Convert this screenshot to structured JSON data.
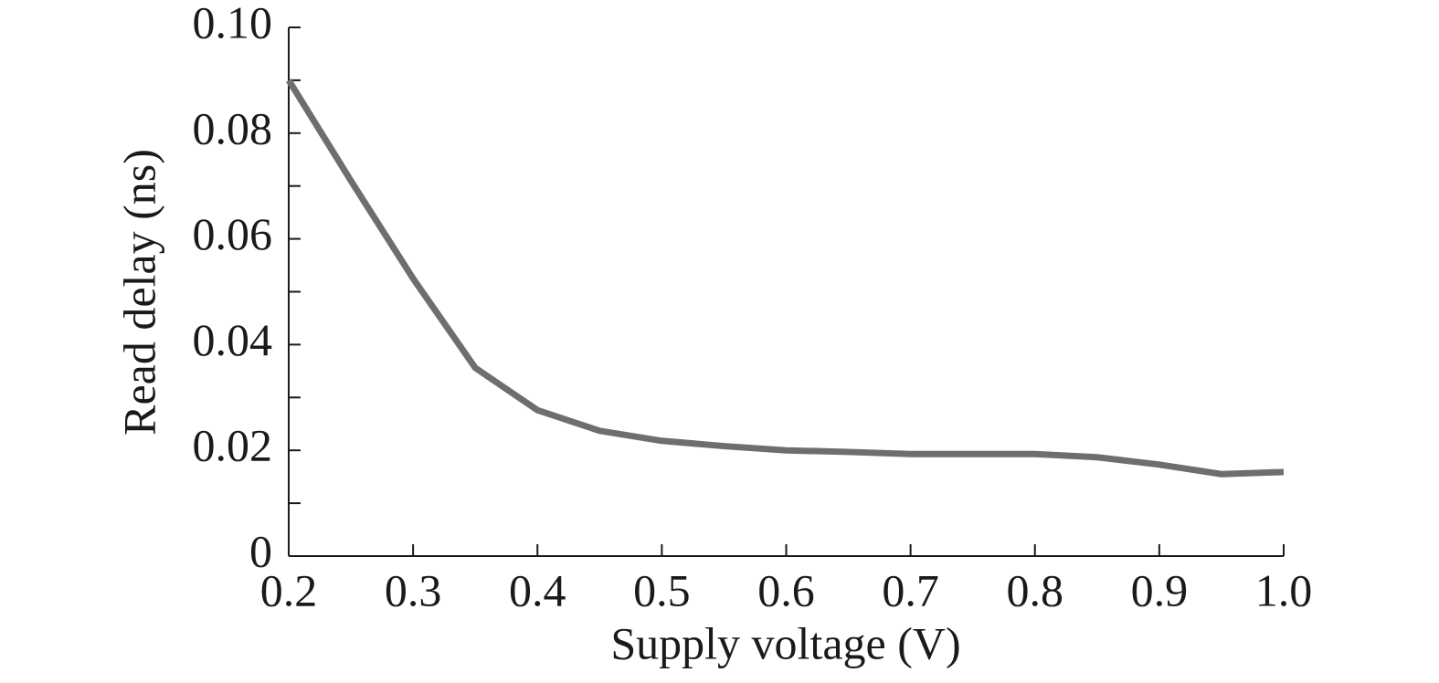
{
  "chart_data": {
    "type": "line",
    "xlabel": "Supply voltage (V)",
    "ylabel": "Read delay (ns)",
    "x": [
      0.2,
      0.25,
      0.3,
      0.35,
      0.4,
      0.45,
      0.5,
      0.55,
      0.6,
      0.65,
      0.7,
      0.75,
      0.8,
      0.85,
      0.9,
      0.95,
      1.0
    ],
    "series": [
      {
        "color": "#6e6e6e",
        "values": [
          0.09,
          0.071,
          0.0525,
          0.0356,
          0.0276,
          0.0237,
          0.0218,
          0.0208,
          0.02,
          0.0197,
          0.0193,
          0.0193,
          0.0193,
          0.0187,
          0.0173,
          0.0155,
          0.0159
        ]
      }
    ],
    "xlim": [
      0.2,
      1.0
    ],
    "xticks": [
      0.2,
      0.3,
      0.4,
      0.5,
      0.6,
      0.7,
      0.8,
      0.9,
      {
        "value": 1,
        "label": "1.0"
      }
    ],
    "ylim": [
      0,
      0.1
    ],
    "yticks": [
      0,
      0.02,
      0.04,
      0.06,
      0.08,
      {
        "value": 0.1,
        "label": "0.10"
      }
    ],
    "yminorticks": [
      0.01,
      0.03,
      0.05,
      0.07,
      0.09
    ],
    "grid": false
  }
}
